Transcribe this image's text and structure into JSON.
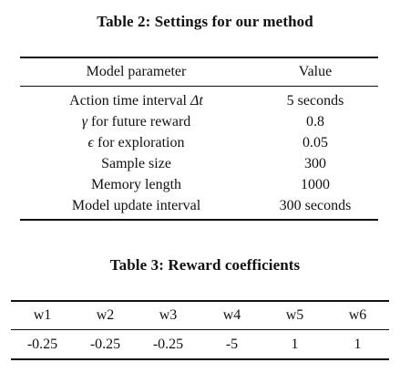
{
  "table2": {
    "caption": "Table 2: Settings for our method",
    "headers": [
      "Model parameter",
      "Value"
    ],
    "rows": [
      {
        "param_prefix": "Action time interval ",
        "param_symbol": "Δt",
        "param_suffix": "",
        "value": "5 seconds"
      },
      {
        "param_prefix": "",
        "param_symbol": "γ",
        "param_suffix": " for future reward",
        "value": "0.8"
      },
      {
        "param_prefix": "",
        "param_symbol": "ϵ",
        "param_suffix": " for exploration",
        "value": "0.05"
      },
      {
        "param_prefix": "Sample size",
        "param_symbol": "",
        "param_suffix": "",
        "value": "300"
      },
      {
        "param_prefix": "Memory length",
        "param_symbol": "",
        "param_suffix": "",
        "value": "1000"
      },
      {
        "param_prefix": "Model update interval",
        "param_symbol": "",
        "param_suffix": "",
        "value": "300 seconds"
      }
    ]
  },
  "table3": {
    "caption": "Table 3: Reward coefficients",
    "headers": [
      "w1",
      "w2",
      "w3",
      "w4",
      "w5",
      "w6"
    ],
    "values": [
      "-0.25",
      "-0.25",
      "-0.25",
      "-5",
      "1",
      "1"
    ]
  }
}
